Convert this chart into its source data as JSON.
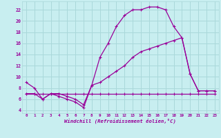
{
  "xlabel": "Windchill (Refroidissement éolien,°C)",
  "bg_color": "#c8eef0",
  "grid_color": "#aad8da",
  "line_color": "#990099",
  "xlim": [
    -0.5,
    23.5
  ],
  "ylim": [
    3.5,
    23.5
  ],
  "yticks": [
    4,
    6,
    8,
    10,
    12,
    14,
    16,
    18,
    20,
    22
  ],
  "xticks": [
    0,
    1,
    2,
    3,
    4,
    5,
    6,
    7,
    8,
    9,
    10,
    11,
    12,
    13,
    14,
    15,
    16,
    17,
    18,
    19,
    20,
    21,
    22,
    23
  ],
  "series1_x": [
    0,
    1,
    2,
    3,
    4,
    5,
    6,
    7,
    8,
    9,
    10,
    11,
    12,
    13,
    14,
    15,
    16,
    17,
    18,
    19,
    20,
    21,
    22,
    23
  ],
  "series1_y": [
    9.0,
    8.0,
    6.0,
    7.0,
    7.0,
    6.5,
    6.0,
    5.0,
    8.5,
    13.5,
    16.0,
    19.0,
    21.0,
    22.0,
    22.0,
    22.5,
    22.5,
    22.0,
    19.0,
    17.0,
    10.5,
    7.5,
    7.5,
    7.5
  ],
  "series2_x": [
    0,
    1,
    2,
    3,
    4,
    5,
    6,
    7,
    8,
    9,
    10,
    11,
    12,
    13,
    14,
    15,
    16,
    17,
    18,
    19,
    20,
    21,
    22,
    23
  ],
  "series2_y": [
    7.0,
    7.0,
    7.0,
    7.0,
    7.0,
    7.0,
    7.0,
    7.0,
    7.0,
    7.0,
    7.0,
    7.0,
    7.0,
    7.0,
    7.0,
    7.0,
    7.0,
    7.0,
    7.0,
    7.0,
    7.0,
    7.0,
    7.0,
    7.0
  ],
  "series3_x": [
    0,
    1,
    2,
    3,
    4,
    5,
    6,
    7,
    8,
    9,
    10,
    11,
    12,
    13,
    14,
    15,
    16,
    17,
    18,
    19,
    20,
    21,
    22,
    23
  ],
  "series3_y": [
    7.0,
    7.0,
    6.0,
    7.0,
    6.5,
    6.0,
    5.5,
    4.5,
    8.5,
    9.0,
    10.0,
    11.0,
    12.0,
    13.5,
    14.5,
    15.0,
    15.5,
    16.0,
    16.5,
    17.0,
    10.5,
    7.5,
    7.5,
    7.5
  ]
}
